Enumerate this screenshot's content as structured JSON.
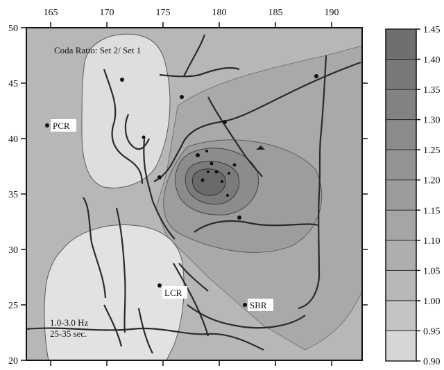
{
  "map": {
    "title": "Coda Ratio: Set 2/ Set 1",
    "band_line1": "1.0-3.0 Hz",
    "band_line2": "25-35 sec.",
    "x_ticks": [
      "165",
      "170",
      "175",
      "180",
      "185",
      "190"
    ],
    "y_ticks": [
      "50",
      "45",
      "40",
      "35",
      "30",
      "25",
      "20"
    ],
    "stations": [
      {
        "label": "PCR",
        "lon": 164.5,
        "lat": 41.2
      },
      {
        "label": "LCR",
        "lon": 174.5,
        "lat": 26.9
      },
      {
        "label": "SBR",
        "lon": 182.0,
        "lat": 25.1
      }
    ]
  },
  "colorbar": {
    "labels": [
      "1.45",
      "1.40",
      "1.35",
      "1.30",
      "1.25",
      "1.20",
      "1.15",
      "1.10",
      "1.05",
      "1.00",
      "0.95",
      "0.90"
    ],
    "colors": [
      "#6f6f6f",
      "#797979",
      "#828282",
      "#8b8b8b",
      "#949494",
      "#9c9c9c",
      "#a5a5a5",
      "#aeaeae",
      "#b8b8b8",
      "#c4c4c4",
      "#d6d6d6"
    ]
  }
}
